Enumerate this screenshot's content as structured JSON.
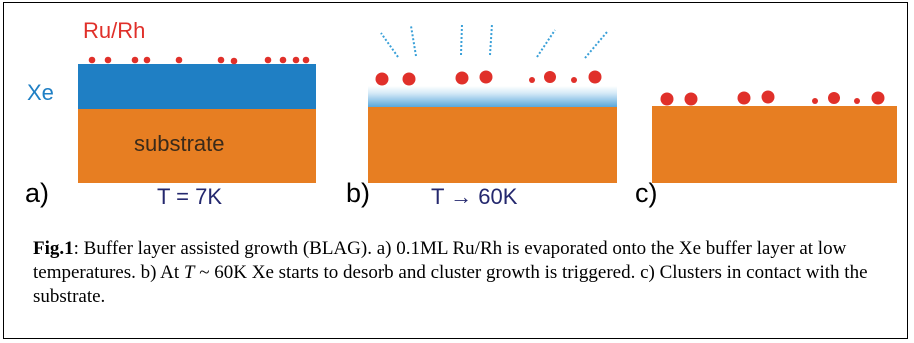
{
  "labels": {
    "ru_rh": "Ru/Rh",
    "xe": "Xe",
    "substrate": "substrate"
  },
  "panels": {
    "a": {
      "label": "a)",
      "temperature": "T = 7K"
    },
    "b": {
      "label": "b)",
      "temperature": "T → 60K"
    },
    "c": {
      "label": "c)"
    }
  },
  "caption": {
    "fig": "Fig.1",
    "part1": ":  Buffer layer assisted growth (BLAG). a) 0.1ML Ru/Rh is evaporated onto the Xe buffer layer at low temperatures. b) At ",
    "t_symbol": "T",
    "part2": " ~ 60K Xe starts to desorb and cluster growth is triggered. c) Clusters in contact with the substrate."
  },
  "colors": {
    "ru_rh": "#e0302a",
    "xe": "#1f7fc4",
    "substrate": "#e77e22",
    "desorb_lines": "#3aa0d8"
  }
}
